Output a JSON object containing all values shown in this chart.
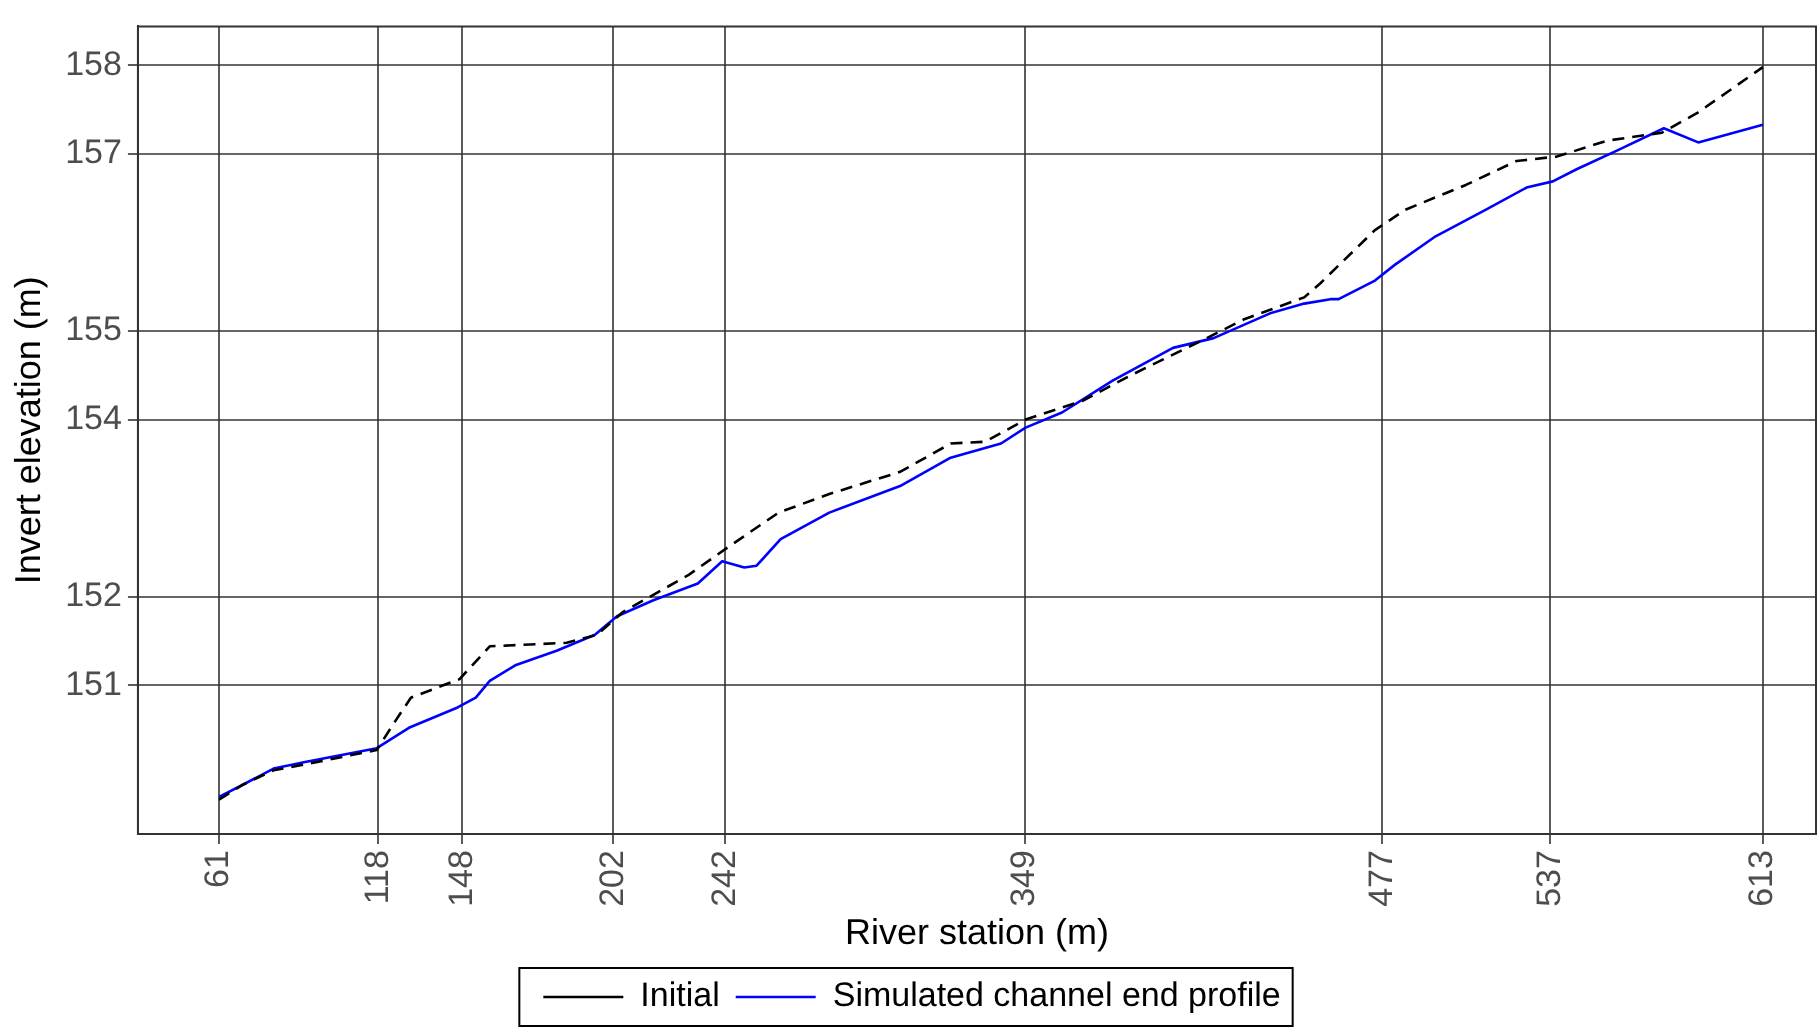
{
  "chart_data": {
    "type": "line",
    "xlabel": "River station (m)",
    "ylabel": "Invert elevation (m)",
    "xlim": [
      32,
      632
    ],
    "ylim": [
      149.32,
      158.44
    ],
    "xticks": [
      61,
      118,
      148,
      202,
      242,
      349,
      477,
      537,
      613
    ],
    "yticks": [
      151,
      152,
      154,
      155,
      157,
      158
    ],
    "grid": true,
    "legend": "bottom",
    "marker": "none",
    "series": [
      {
        "name": "Initial",
        "color": "#000000",
        "line_style": "dashed",
        "x": [
          61,
          69.7,
          80.5,
          98.6,
          117.4,
          123.9,
          129.6,
          147,
          157.8,
          185.3,
          196.1,
          205.5,
          228.6,
          243,
          261.1,
          279.2,
          304.5,
          322.6,
          334.9,
          349.4,
          369.6,
          387.6,
          412.9,
          427.3,
          449,
          454.8,
          474.3,
          485.2,
          506.8,
          524.9,
          539.3,
          557.4,
          576.9,
          589.9,
          613
        ],
        "values": [
          149.71,
          149.88,
          150.04,
          150.15,
          150.27,
          150.59,
          150.86,
          151.07,
          151.44,
          151.48,
          151.57,
          151.83,
          152.24,
          152.56,
          152.95,
          153.16,
          153.41,
          153.73,
          153.75,
          154.0,
          154.21,
          154.51,
          154.9,
          155.13,
          155.38,
          155.54,
          156.14,
          156.37,
          156.65,
          156.92,
          156.97,
          157.15,
          157.24,
          157.47,
          157.98
        ]
      },
      {
        "name": "Simulated channel end profile",
        "color": "#0000ff",
        "line_style": "solid",
        "x": [
          61,
          69.7,
          80.5,
          91.3,
          117.4,
          128.9,
          146.3,
          152.8,
          157.8,
          167.2,
          181.7,
          195.4,
          203.3,
          216.3,
          232.2,
          240.9,
          248.8,
          253.2,
          261.8,
          279.2,
          304.5,
          322.6,
          340.6,
          349.4,
          362.4,
          380.5,
          402.1,
          416.6,
          436.8,
          449,
          458.4,
          461.3,
          474.3,
          481.5,
          496,
          514,
          528.5,
          537.9,
          546.6,
          561,
          577.6,
          589.9,
          613
        ],
        "values": [
          149.74,
          149.88,
          150.06,
          150.13,
          150.29,
          150.52,
          150.75,
          150.86,
          151.05,
          151.23,
          151.39,
          151.57,
          151.78,
          151.96,
          152.15,
          152.4,
          152.33,
          152.35,
          152.65,
          152.95,
          153.25,
          153.57,
          153.73,
          153.91,
          154.08,
          154.44,
          154.81,
          154.92,
          155.2,
          155.31,
          155.36,
          155.36,
          155.57,
          155.75,
          156.07,
          156.37,
          156.62,
          156.69,
          156.83,
          157.04,
          157.29,
          157.13,
          157.33
        ]
      }
    ]
  }
}
